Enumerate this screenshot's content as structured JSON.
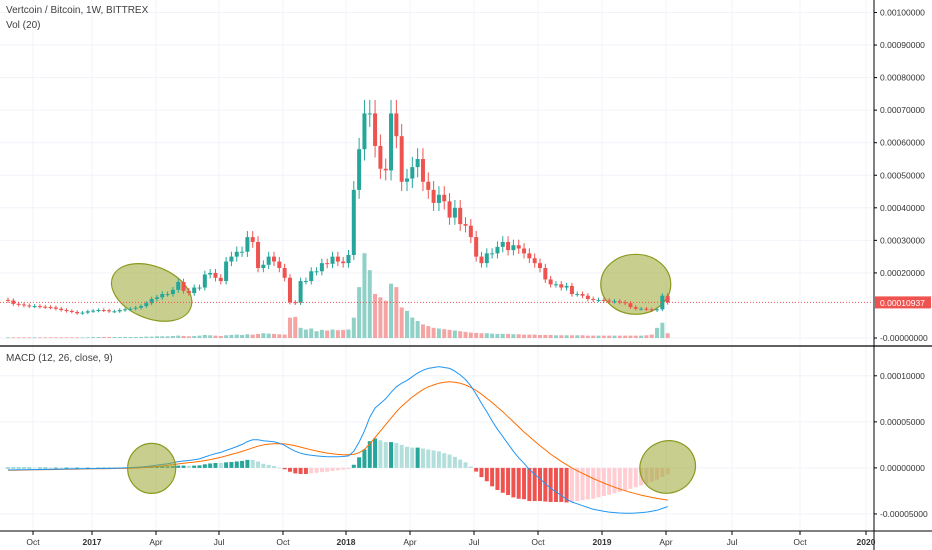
{
  "header": {
    "symbol": "Vertcoin / Bitcoin, 1W, BITTREX",
    "volume": "Vol (20)",
    "macd": "MACD (12, 26, close, 9)"
  },
  "colors": {
    "up": "#26a69a",
    "down": "#ef5350",
    "vol_up": "#8fd1c6",
    "vol_down": "#f4a5a3",
    "macd_line": "#2196f3",
    "signal_line": "#ff6d00",
    "price_line": "#ef5350",
    "ellipse": "#9aa832"
  },
  "price_axis": {
    "ticks": [
      "0.00100000",
      "0.00090000",
      "0.00080000",
      "0.00070000",
      "0.00060000",
      "0.00050000",
      "0.00040000",
      "0.00030000",
      "0.00020000",
      "-0.00000000"
    ],
    "tick_values": [
      0.001,
      0.0009,
      0.0008,
      0.0007,
      0.0006,
      0.0005,
      0.0004,
      0.0003,
      0.0002,
      0.0
    ],
    "current_price_label": "0.00010937",
    "current_price": 0.00010937
  },
  "macd_axis": {
    "ticks": [
      "0.00010000",
      "0.00005000",
      "0.00000000",
      "-0.00005000"
    ],
    "tick_values": [
      0.0001,
      5e-05,
      0.0,
      -5e-05
    ]
  },
  "time_axis": {
    "labels": [
      "Oct",
      "2017",
      "Apr",
      "Jul",
      "Oct",
      "2018",
      "Apr",
      "Jul",
      "Oct",
      "2019",
      "Apr",
      "Jul",
      "Oct",
      "2020"
    ],
    "bold": [
      false,
      true,
      false,
      false,
      false,
      true,
      false,
      false,
      false,
      true,
      false,
      false,
      false,
      true
    ]
  },
  "chart_data": [
    {
      "type": "candlestick",
      "title": "Vertcoin / Bitcoin, 1W, BITTREX",
      "ylim": [
        0.0,
        0.00102
      ],
      "weeks": 125,
      "close": [
        0.000115,
        0.000105,
        0.000103,
        0.0001,
        9.8e-05,
        9.8e-05,
        9.6e-05,
        9.5e-05,
        9.4e-05,
        9e-05,
        8.6e-05,
        8.3e-05,
        8e-05,
        7.6e-05,
        7.8e-05,
        8.2e-05,
        8.4e-05,
        8.6e-05,
        8.5e-05,
        8.2e-05,
        8.2e-05,
        8.6e-05,
        8.8e-05,
        9e-05,
        9.3e-05,
        9.8e-05,
        0.000107,
        0.00012,
        0.000125,
        0.000135,
        0.000135,
        0.000148,
        0.000172,
        0.000145,
        0.000138,
        0.000155,
        0.000155,
        0.000195,
        0.0002,
        0.000185,
        0.000175,
        0.000235,
        0.00025,
        0.000265,
        0.000265,
        0.00031,
        0.000295,
        0.000215,
        0.000225,
        0.00025,
        0.000235,
        0.000215,
        0.000185,
        0.00011,
        0.000108,
        0.000175,
        0.000175,
        0.000205,
        0.000205,
        0.00023,
        0.000228,
        0.00025,
        0.000235,
        0.00023,
        0.000255,
        0.000455,
        0.00058,
        0.00069,
        0.00069,
        0.00059,
        0.00052,
        0.000515,
        0.00069,
        0.00062,
        0.00048,
        0.00049,
        0.000525,
        0.00055,
        0.00048,
        0.000455,
        0.000415,
        0.00044,
        0.00042,
        0.00037,
        0.0004,
        0.00035,
        0.000345,
        0.00031,
        0.00025,
        0.00023,
        0.00026,
        0.00026,
        0.00028,
        0.000295,
        0.00027,
        0.000285,
        0.000275,
        0.00026,
        0.000245,
        0.00023,
        0.000215,
        0.00018,
        0.000165,
        0.000165,
        0.000155,
        0.00016,
        0.000135,
        0.000135,
        0.00013,
        0.00012,
        0.000117,
        0.000117,
        0.000115,
        0.000113,
        0.000113,
        0.00011,
        0.000107,
        9.5e-05,
        9e-05,
        9e-05,
        8.8e-05,
        8.5e-05,
        8.8e-05,
        0.00013,
        0.000109
      ],
      "volume": [
        2,
        2,
        2,
        2,
        2,
        2,
        2,
        2,
        2,
        2,
        2,
        2,
        2,
        2,
        2,
        2,
        3,
        3,
        3,
        3,
        3,
        3,
        3,
        3,
        3,
        3,
        4,
        4,
        5,
        5,
        5,
        6,
        7,
        6,
        5,
        6,
        7,
        9,
        8,
        7,
        6,
        8,
        9,
        10,
        9,
        11,
        10,
        12,
        14,
        13,
        12,
        11,
        10,
        60,
        62,
        30,
        25,
        28,
        20,
        24,
        22,
        25,
        23,
        24,
        25,
        60,
        150,
        250,
        200,
        130,
        120,
        110,
        160,
        150,
        90,
        80,
        60,
        50,
        40,
        35,
        30,
        28,
        26,
        24,
        22,
        20,
        18,
        16,
        15,
        14,
        14,
        13,
        12,
        12,
        12,
        11,
        11,
        10,
        10,
        10,
        9,
        9,
        9,
        8,
        8,
        8,
        8,
        8,
        8,
        7,
        7,
        7,
        7,
        7,
        7,
        7,
        7,
        7,
        7,
        7,
        8,
        10,
        30,
        45,
        14
      ],
      "vol_max": 280
    },
    {
      "type": "macd",
      "title": "MACD (12, 26, close, 9)",
      "ylim": [
        -6.2e-05,
        0.000128
      ],
      "macd": [
        -2.2e-06,
        -2.2e-06,
        -2.1e-06,
        -2e-06,
        -1.9e-06,
        -1.8e-06,
        -1.7e-06,
        -1.6e-06,
        -1.5e-06,
        -1.4e-06,
        -1.3e-06,
        -1.2e-06,
        -1.1e-06,
        -1e-06,
        -9e-07,
        -8e-07,
        -8e-07,
        -7e-07,
        -6e-07,
        -5e-07,
        -4e-07,
        -2e-07,
        0.0,
        3e-07,
        6e-07,
        1e-06,
        1.5e-06,
        2.2e-06,
        3e-06,
        3.8e-06,
        4.5e-06,
        5.5e-06,
        6.8e-06,
        7.5e-06,
        8e-06,
        8.8e-06,
        9.8e-06,
        1.18e-05,
        1.38e-05,
        1.55e-05,
        1.68e-05,
        1.9e-05,
        2.1e-05,
        2.32e-05,
        2.55e-05,
        2.85e-05,
        3.05e-05,
        3.05e-05,
        2.95e-05,
        2.9e-05,
        2.83e-05,
        2.68e-05,
        2.45e-05,
        2.1e-05,
        1.8e-05,
        1.6e-05,
        1.45e-05,
        1.37e-05,
        1.3e-05,
        1.25e-05,
        1.2e-05,
        1.2e-05,
        1.21e-05,
        1.24e-05,
        1.3e-05,
        1.8e-05,
        2.8e-05,
        4e-05,
        5.5e-05,
        6.5e-05,
        7e-05,
        7.5e-05,
        8.2e-05,
        8.8e-05,
        9.2e-05,
        9.5e-05,
        9.9e-05,
        0.000103,
        0.000106,
        0.000108,
        0.000109,
        0.00011,
        0.000109,
        0.000108,
        0.000105,
        0.000101,
        9.6e-05,
        8.9e-05,
        8e-05,
        7e-05,
        6.1e-05,
        5.1e-05,
        4.2e-05,
        3.4e-05,
        2.6e-05,
        1.8e-05,
        1.1e-05,
        5e-06,
        -2e-06,
        -7e-06,
        -1.2e-05,
        -1.7e-05,
        -2.2e-05,
        -2.6e-05,
        -3e-05,
        -3.4e-05,
        -3.7e-05,
        -3.9e-05,
        -4.1e-05,
        -4.3e-05,
        -4.5e-05,
        -4.6e-05,
        -4.7e-05,
        -4.8e-05,
        -4.85e-05,
        -4.9e-05,
        -4.92e-05,
        -4.92e-05,
        -4.9e-05,
        -4.85e-05,
        -4.8e-05,
        -4.7e-05,
        -4.6e-05,
        -4.4e-05,
        -4.2e-05
      ],
      "signal": [
        -2.5e-06,
        -2.5e-06,
        -2.4e-06,
        -2.3e-06,
        -2.2e-06,
        -2.1e-06,
        -2e-06,
        -1.9e-06,
        -1.8e-06,
        -1.7e-06,
        -1.6e-06,
        -1.5e-06,
        -1.4e-06,
        -1.3e-06,
        -1.2e-06,
        -1.1e-06,
        -1e-06,
        -1e-06,
        -9e-07,
        -8e-07,
        -7e-07,
        -6e-07,
        -5e-07,
        -3e-07,
        -1e-07,
        2e-07,
        5e-07,
        1e-06,
        1.5e-06,
        2.1e-06,
        2.8e-06,
        3.5e-06,
        4.3e-06,
        5e-06,
        5.7e-06,
        6.3e-06,
        7e-06,
        7.9e-06,
        9e-06,
        1.02e-05,
        1.15e-05,
        1.3e-05,
        1.46e-05,
        1.62e-05,
        1.79e-05,
        1.98e-05,
        2.18e-05,
        2.36e-05,
        2.5e-05,
        2.58e-05,
        2.63e-05,
        2.64e-05,
        2.6e-05,
        2.52e-05,
        2.4e-05,
        2.26e-05,
        2.11e-05,
        1.96e-05,
        1.83e-05,
        1.71e-05,
        1.61e-05,
        1.53e-05,
        1.47e-05,
        1.43e-05,
        1.42e-05,
        1.46e-05,
        1.65e-05,
        2e-05,
        2.6e-05,
        3.3e-05,
        4e-05,
        4.7e-05,
        5.4e-05,
        6.1e-05,
        6.7e-05,
        7.2e-05,
        7.7e-05,
        8.1e-05,
        8.5e-05,
        8.8e-05,
        9e-05,
        9.2e-05,
        9.3e-05,
        9.35e-05,
        9.3e-05,
        9.2e-05,
        9e-05,
        8.75e-05,
        8.4e-05,
        8e-05,
        7.55e-05,
        7.1e-05,
        6.6e-05,
        6.1e-05,
        5.55e-05,
        5e-05,
        4.45e-05,
        3.9e-05,
        3.4e-05,
        2.9e-05,
        2.4e-05,
        1.95e-05,
        1.5e-05,
        1.1e-05,
        7e-06,
        3.5e-06,
        0.0,
        -3e-06,
        -6e-06,
        -8.8e-06,
        -1.15e-05,
        -1.4e-05,
        -1.65e-05,
        -1.88e-05,
        -2.1e-05,
        -2.3e-05,
        -2.48e-05,
        -2.65e-05,
        -2.8e-05,
        -2.95e-05,
        -3.08e-05,
        -3.2e-05,
        -3.31e-05,
        -3.41e-05,
        -3.5e-05
      ]
    }
  ]
}
